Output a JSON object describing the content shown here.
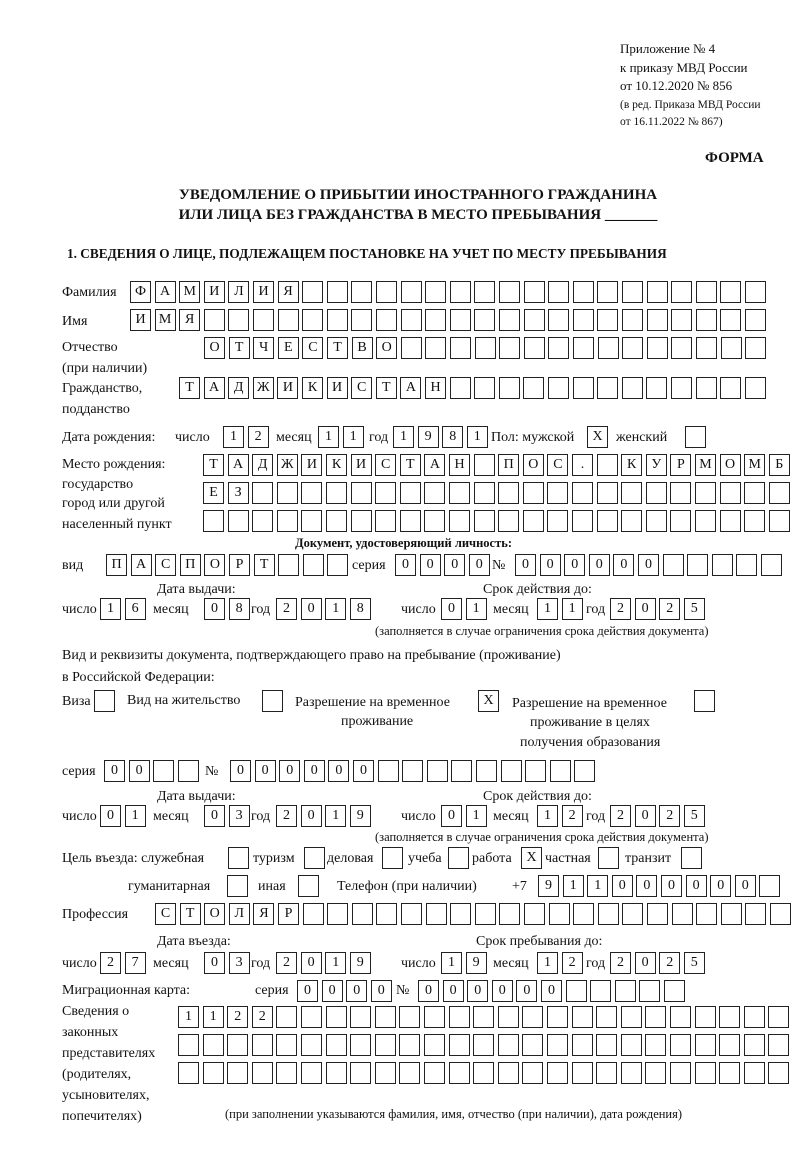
{
  "header": {
    "appendix": "Приложение № 4",
    "order": "к приказу МВД России",
    "order_date": "от 10.12.2020 № 856",
    "edition": "(в ред. Приказа МВД России",
    "edition_date": "от 16.11.2022 № 867)",
    "form_label": "ФОРМА",
    "title_line1": "УВЕДОМЛЕНИЕ О ПРИБЫТИИ ИНОСТРАННОГО ГРАЖДАНИНА",
    "title_line2": "ИЛИ ЛИЦА БЕЗ ГРАЖДАНСТВА В МЕСТО ПРЕБЫВАНИЯ _______",
    "section1": "1. СВЕДЕНИЯ О ЛИЦЕ, ПОДЛЕЖАЩЕМ ПОСТАНОВКЕ НА УЧЕТ ПО МЕСТУ ПРЕБЫВАНИЯ"
  },
  "labels": {
    "surname": "Фамилия",
    "name": "Имя",
    "patronymic": "Отчество",
    "patronymic_note": "(при наличии)",
    "citizenship": "Гражданство,",
    "citizenship2": "подданство",
    "birth_date": "Дата рождения:",
    "day": "число",
    "month": "месяц",
    "year": "год",
    "sex": "Пол: мужской",
    "female": "женский",
    "birthplace1": "Место рождения:",
    "birthplace2": "государство",
    "birthplace3": "город или другой",
    "birthplace4": "населенный пункт",
    "id_doc": "Документ, удостоверяющий личность:",
    "kind": "вид",
    "series": "серия",
    "number": "№",
    "issue_date": "Дата выдачи:",
    "valid_until": "Срок действия до:",
    "validity_note": "(заполняется в случае ограничения срока действия документа)",
    "stay_doc1": "Вид и реквизиты документа, подтверждающего право на пребывание (проживание)",
    "stay_doc2": "в Российской Федерации:",
    "visa": "Виза",
    "residence": "Вид на жительство",
    "temp_permit1": "Разрешение на временное",
    "temp_permit2": "проживание",
    "edu_permit1": "Разрешение на временное",
    "edu_permit2": "проживание в целях",
    "edu_permit3": "получения образования",
    "purpose": "Цель въезда: служебная",
    "tourism": "туризм",
    "business": "деловая",
    "study": "учеба",
    "work": "работа",
    "private": "частная",
    "transit": "транзит",
    "humanitarian": "гуманитарная",
    "other": "иная",
    "phone": "Телефон (при наличии)",
    "phone_prefix": "+7",
    "profession": "Профессия",
    "entry_date": "Дата въезда:",
    "stay_until": "Срок пребывания до:",
    "migration_card": "Миграционная карта:",
    "reps1": "Сведения о",
    "reps2": "законных",
    "reps3": "представителях",
    "reps4": "(родителях,",
    "reps5": "усыновителях,",
    "reps6": "попечителях)",
    "reps_note": "(при заполнении указываются фамилия, имя, отчество (при наличии), дата рождения)"
  },
  "values": {
    "surname": "ФАМИЛИЯ",
    "name": "ИМЯ",
    "patronymic": "ОТЧЕСТВО",
    "citizenship": "ТАДЖИКИСТАН",
    "birth_day": "12",
    "birth_month": "11",
    "birth_year": "1981",
    "male": "X",
    "female": "",
    "birthplace_row1": "ТАДЖИКИСТАН ПОС. КУРМОМБ",
    "birthplace_row2": "ЕЗ",
    "birthplace_row3": "",
    "id_kind": "ПАСПОРТ",
    "id_series": "0000",
    "id_number": "000000",
    "id_issue_day": "16",
    "id_issue_month": "08",
    "id_issue_year": "2018",
    "id_valid_day": "01",
    "id_valid_month": "11",
    "id_valid_year": "2025",
    "visa": "",
    "residence": "",
    "temp_permit": "X",
    "edu_permit": "",
    "stay_series": "00",
    "stay_number": "000000",
    "stay_issue_day": "01",
    "stay_issue_month": "03",
    "stay_issue_year": "2019",
    "stay_valid_day": "01",
    "stay_valid_month": "12",
    "stay_valid_year": "2025",
    "p_official": "",
    "p_tourism": "",
    "p_business": "",
    "p_study": "",
    "p_work": "X",
    "p_private": "",
    "p_transit": "",
    "p_humanitarian": "",
    "p_other": "",
    "phone": "911000000",
    "profession": "СТОЛЯР",
    "entry_day": "27",
    "entry_month": "03",
    "entry_year": "2019",
    "until_day": "19",
    "until_month": "12",
    "until_year": "2025",
    "mc_series": "0000",
    "mc_number": "000000",
    "reps_row1": "1122",
    "reps_row2": "",
    "reps_row3": ""
  }
}
